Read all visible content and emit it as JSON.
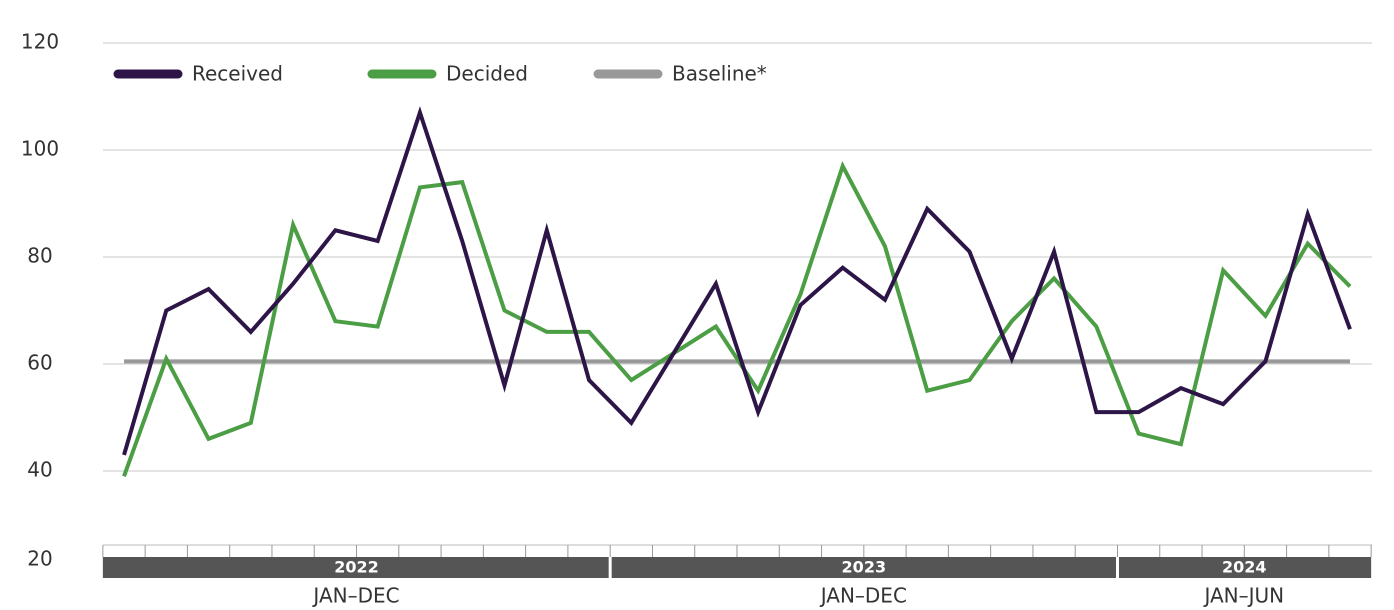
{
  "chart_data": {
    "type": "line",
    "ylim": [
      20,
      120
    ],
    "yticks": [
      20,
      40,
      60,
      80,
      100,
      120
    ],
    "grid": true,
    "periods": [
      {
        "year": "2022",
        "range": "JAN–DEC",
        "months": 12
      },
      {
        "year": "2023",
        "range": "JAN–DEC",
        "months": 12
      },
      {
        "year": "2024",
        "range": "JAN–JUN",
        "months": 6
      }
    ],
    "series": [
      {
        "name": "Received",
        "color": "#2d1548",
        "values": [
          43,
          70,
          74,
          66,
          75,
          85,
          83,
          107,
          83,
          56,
          85,
          57,
          49,
          62,
          75,
          51,
          71,
          78,
          72,
          89,
          81,
          61,
          81,
          51,
          51,
          55.5,
          52.5,
          60.5,
          88,
          66.5
        ]
      },
      {
        "name": "Decided",
        "color": "#4c9e45",
        "values": [
          39,
          61,
          46,
          49,
          86,
          68,
          67,
          93,
          94,
          70,
          66,
          66,
          57,
          62,
          67,
          55,
          73,
          97,
          82,
          55,
          57,
          68,
          76,
          67,
          47,
          45,
          77.5,
          69,
          82.5,
          74.5
        ]
      },
      {
        "name": "Baseline*",
        "color": "#999999",
        "values": [
          60.5,
          60.5,
          60.5,
          60.5,
          60.5,
          60.5,
          60.5,
          60.5,
          60.5,
          60.5,
          60.5,
          60.5,
          60.5,
          60.5,
          60.5,
          60.5,
          60.5,
          60.5,
          60.5,
          60.5,
          60.5,
          60.5,
          60.5,
          60.5,
          60.5,
          60.5,
          60.5,
          60.5,
          60.5,
          60.5
        ]
      }
    ],
    "legend": "top-left"
  }
}
